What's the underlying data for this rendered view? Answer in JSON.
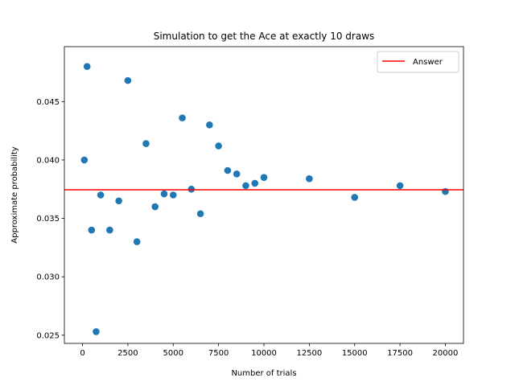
{
  "chart_data": {
    "type": "scatter",
    "title": "Simulation to get the Ace at exactly 10 draws",
    "xlabel": "Number of trials",
    "ylabel": "Approximate probability",
    "xlim": [
      -1000,
      21000
    ],
    "ylim": [
      0.0243,
      0.0497
    ],
    "grid": false,
    "legend_position": "top-right",
    "xticks": [
      0,
      2500,
      5000,
      7500,
      10000,
      12500,
      15000,
      17500,
      20000
    ],
    "xtick_labels": [
      "0",
      "2500",
      "5000",
      "7500",
      "10000",
      "12500",
      "15000",
      "17500",
      "20000"
    ],
    "yticks": [
      0.025,
      0.03,
      0.035,
      0.04,
      0.045
    ],
    "ytick_labels": [
      "0.025",
      "0.030",
      "0.035",
      "0.040",
      "0.045"
    ],
    "series": [
      {
        "marker_color": "#1f77b4",
        "x": [
          100,
          250,
          500,
          750,
          1000,
          1500,
          2000,
          2500,
          3000,
          3500,
          4000,
          4500,
          5000,
          5500,
          6000,
          6500,
          7000,
          7500,
          8000,
          8500,
          9000,
          9500,
          10000,
          12500,
          15000,
          17500,
          20000
        ],
        "y": [
          0.04,
          0.048,
          0.034,
          0.0253,
          0.037,
          0.034,
          0.0365,
          0.0468,
          0.033,
          0.0414,
          0.036,
          0.0371,
          0.037,
          0.0436,
          0.0375,
          0.0354,
          0.043,
          0.0412,
          0.0391,
          0.0388,
          0.0378,
          0.038,
          0.0385,
          0.0384,
          0.0368,
          0.0378,
          0.0373
        ]
      }
    ],
    "reference_line": {
      "name": "Answer",
      "y": 0.03745,
      "color": "#ff0000"
    }
  }
}
